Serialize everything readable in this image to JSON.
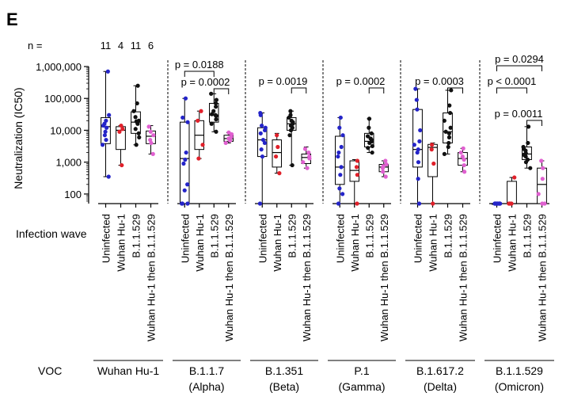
{
  "chart_data": {
    "type": "box",
    "panel_label": "E",
    "n_label": "n =",
    "n_values": [
      "11",
      "4",
      "11",
      "6"
    ],
    "ylabel": "Neutralization (IC50)",
    "yscale": "log",
    "ylim": [
      50,
      1000000
    ],
    "yticks": [
      {
        "value": 100,
        "label": "100"
      },
      {
        "value": 1000,
        "label": "1,000"
      },
      {
        "value": 10000,
        "label": "10,000"
      },
      {
        "value": 100000,
        "label": "100,000"
      },
      {
        "value": 1000000,
        "label": "1,000,000"
      }
    ],
    "infection_wave_label": "Infection wave",
    "voc_label": "VOC",
    "groups": [
      "Uninfected",
      "Wuhan Hu-1",
      "B.1.1.529",
      "Wuhan Hu-1 then B.1.1.529"
    ],
    "group_colors": [
      "#2424c8",
      "#e0202a",
      "#111111",
      "#e060d0"
    ],
    "panels": [
      {
        "voc_line1": "Wuhan Hu-1",
        "voc_line2": "",
        "boxes": [
          {
            "min": 350,
            "q1": 3800,
            "median": 13000,
            "q3": 25000,
            "max": 700000,
            "points": [
              350,
              3500,
              5000,
              7000,
              9000,
              12000,
              14000,
              16000,
              20000,
              30000,
              700000
            ]
          },
          {
            "min": 800,
            "q1": 2500,
            "median": 10000,
            "q3": 13000,
            "max": 14000,
            "points": [
              800,
              9000,
              11000,
              14000
            ]
          },
          {
            "min": 3500,
            "q1": 8000,
            "median": 18000,
            "q3": 38000,
            "max": 250000,
            "points": [
              3500,
              6000,
              8000,
              11000,
              16000,
              19000,
              20000,
              26000,
              40000,
              70000,
              250000
            ]
          },
          {
            "min": 1800,
            "q1": 3800,
            "median": 6500,
            "q3": 9500,
            "max": 14000,
            "points": [
              1800,
              4000,
              5000,
              7000,
              9000,
              13000
            ]
          }
        ],
        "brackets": []
      },
      {
        "voc_line1": "B.1.1.7",
        "voc_line2": "(Alpha)",
        "boxes": [
          {
            "min": 50,
            "q1": 50,
            "median": 1300,
            "q3": 18000,
            "max": 100000,
            "points": [
              50,
              50,
              50,
              130,
              200,
              900,
              1200,
              2000,
              18000,
              25000,
              100000
            ]
          },
          {
            "min": 1300,
            "q1": 2500,
            "median": 7000,
            "q3": 20000,
            "max": 40000,
            "points": [
              1300,
              3500,
              20000,
              40000
            ]
          },
          {
            "min": 9000,
            "q1": 18000,
            "median": 30000,
            "q3": 70000,
            "max": 140000,
            "points": [
              9000,
              16000,
              22000,
              28000,
              32000,
              40000,
              55000,
              70000,
              90000,
              140000,
              30000
            ]
          },
          {
            "min": 4000,
            "q1": 4500,
            "median": 5500,
            "q3": 7000,
            "max": 8500,
            "points": [
              4000,
              4800,
              5500,
              6200,
              7500,
              8500
            ]
          }
        ],
        "brackets": [
          {
            "from": 0,
            "to": 2,
            "label": "p = 0.0188"
          },
          {
            "from": 2,
            "to": 3,
            "label": "p = 0.0002"
          }
        ]
      },
      {
        "voc_line1": "B.1.351",
        "voc_line2": "(Beta)",
        "boxes": [
          {
            "min": 50,
            "q1": 1500,
            "median": 5000,
            "q3": 12000,
            "max": 35000,
            "points": [
              50,
              1500,
              2500,
              4000,
              5000,
              8000,
              10000,
              12000,
              14000,
              30000,
              35000
            ]
          },
          {
            "min": 450,
            "q1": 700,
            "median": 2000,
            "q3": 5000,
            "max": 8000,
            "points": [
              450,
              1500,
              3000,
              7000
            ]
          },
          {
            "min": 800,
            "q1": 10000,
            "median": 16000,
            "q3": 25000,
            "max": 40000,
            "points": [
              800,
              7000,
              10000,
              12000,
              14000,
              16000,
              18000,
              20000,
              25000,
              30000,
              40000
            ]
          },
          {
            "min": 650,
            "q1": 900,
            "median": 1400,
            "q3": 1800,
            "max": 3000,
            "points": [
              650,
              1000,
              1300,
              1500,
              2000,
              2600
            ]
          }
        ],
        "brackets": [
          {
            "from": 2,
            "to": 3,
            "label": "p = 0.0019"
          }
        ]
      },
      {
        "voc_line1": "P.1",
        "voc_line2": "(Gamma)",
        "boxes": [
          {
            "min": 50,
            "q1": 200,
            "median": 700,
            "q3": 6500,
            "max": 25000,
            "points": [
              50,
              100,
              150,
              400,
              700,
              1500,
              2000,
              3000,
              7000,
              12000,
              25000
            ]
          },
          {
            "min": 50,
            "q1": 250,
            "median": 550,
            "q3": 1100,
            "max": 1200,
            "points": [
              50,
              400,
              700,
              1100
            ]
          },
          {
            "min": 2000,
            "q1": 3000,
            "median": 4500,
            "q3": 8000,
            "max": 23000,
            "points": [
              2000,
              2800,
              3200,
              4000,
              4500,
              5000,
              5500,
              6500,
              8000,
              12000,
              23000
            ]
          },
          {
            "min": 350,
            "q1": 500,
            "median": 700,
            "q3": 850,
            "max": 1100,
            "points": [
              350,
              500,
              650,
              750,
              850,
              1100
            ]
          }
        ],
        "brackets": [
          {
            "from": 2,
            "to": 3,
            "label": "p = 0.0002"
          }
        ]
      },
      {
        "voc_line1": "B.1.617.2",
        "voc_line2": "(Delta)",
        "boxes": [
          {
            "min": 50,
            "q1": 700,
            "median": 2500,
            "q3": 45000,
            "max": 200000,
            "points": [
              50,
              300,
              1000,
              2000,
              2500,
              3500,
              4500,
              10000,
              45000,
              90000,
              200000
            ]
          },
          {
            "min": 50,
            "q1": 350,
            "median": 2900,
            "q3": 3600,
            "max": 4000,
            "points": [
              50,
              900,
              2500,
              3500
            ]
          },
          {
            "min": 1800,
            "q1": 4000,
            "median": 9000,
            "q3": 35000,
            "max": 180000,
            "points": [
              1800,
              3000,
              4000,
              6000,
              8000,
              9000,
              12000,
              20000,
              35000,
              60000,
              180000
            ]
          },
          {
            "min": 500,
            "q1": 800,
            "median": 1300,
            "q3": 2000,
            "max": 2700,
            "points": [
              500,
              800,
              1200,
              1500,
              2000,
              2700
            ]
          }
        ],
        "brackets": [
          {
            "from": 2,
            "to": 3,
            "label": "p = 0.0003"
          }
        ]
      },
      {
        "voc_line1": "B.1.1.529",
        "voc_line2": "(Omicron)",
        "boxes": [
          {
            "min": 50,
            "q1": 50,
            "median": 50,
            "q3": 50,
            "max": 50,
            "points": [
              50,
              50,
              50,
              50,
              50,
              50,
              50,
              50,
              50,
              50,
              50
            ]
          },
          {
            "min": 50,
            "q1": 50,
            "median": 50,
            "q3": 250,
            "max": 330,
            "points": [
              50,
              50,
              50,
              330
            ]
          },
          {
            "min": 650,
            "q1": 1200,
            "median": 1800,
            "q3": 3000,
            "max": 13000,
            "points": [
              650,
              1000,
              1200,
              1500,
              1700,
              1900,
              2300,
              2600,
              3000,
              4000,
              13000
            ]
          },
          {
            "min": 50,
            "q1": 50,
            "median": 200,
            "q3": 650,
            "max": 1100,
            "points": [
              50,
              50,
              100,
              300,
              650,
              1100
            ]
          }
        ],
        "brackets": [
          {
            "from": 0,
            "to": 3,
            "label": "p = 0.0294"
          },
          {
            "from": 0,
            "to": 2,
            "label": "p < 0.0001"
          },
          {
            "from": 2,
            "to": 3,
            "label": "p = 0.0011"
          }
        ]
      }
    ]
  }
}
